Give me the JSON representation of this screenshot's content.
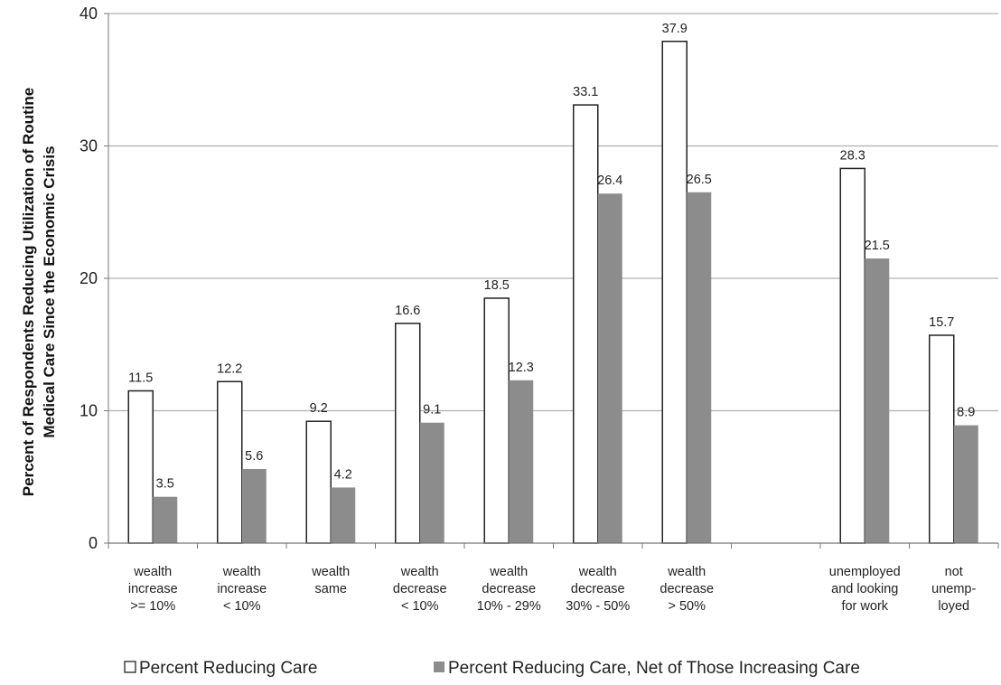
{
  "chart_data": {
    "type": "bar",
    "ylabel": [
      "Percent of Respondents Reducing Utilization of Routine",
      "Medical Care Since the Economic Crisis"
    ],
    "xlabel": "",
    "ylim": [
      0,
      40
    ],
    "yticks": [
      0,
      10,
      20,
      30,
      40
    ],
    "grid": true,
    "legend_position": "bottom",
    "categories": [
      [
        "wealth",
        "increase",
        ">= 10%"
      ],
      [
        "wealth",
        "increase",
        "< 10%"
      ],
      [
        "wealth",
        "same"
      ],
      [
        "wealth",
        "decrease",
        "< 10%"
      ],
      [
        "wealth",
        "decrease",
        "10% - 29%"
      ],
      [
        "wealth",
        "decrease",
        "30% - 50%"
      ],
      [
        "wealth",
        "decrease",
        "> 50%"
      ],
      [],
      [
        "unemployed",
        "and looking",
        "for work"
      ],
      [
        "not",
        "unemp-",
        "loyed"
      ]
    ],
    "series": [
      {
        "name": "Percent Reducing Care",
        "color": "#ffffff",
        "values": [
          11.5,
          12.2,
          9.2,
          16.6,
          18.5,
          33.1,
          37.9,
          null,
          28.3,
          15.7
        ],
        "labels": [
          "11.5",
          "12.2",
          "9.2",
          "16.6",
          "18.5",
          "33.1",
          "37.9",
          null,
          "28.3",
          "15.7"
        ]
      },
      {
        "name": "Percent Reducing Care, Net of Those Increasing Care",
        "color": "#8c8c8c",
        "values": [
          3.5,
          5.6,
          4.2,
          9.1,
          12.3,
          26.4,
          26.5,
          null,
          21.5,
          8.9
        ],
        "labels": [
          "3.5",
          "5.6",
          "4.2",
          "9.1",
          "12.3",
          "26.4",
          "26.5",
          null,
          "21.5",
          "8.9"
        ]
      }
    ]
  }
}
